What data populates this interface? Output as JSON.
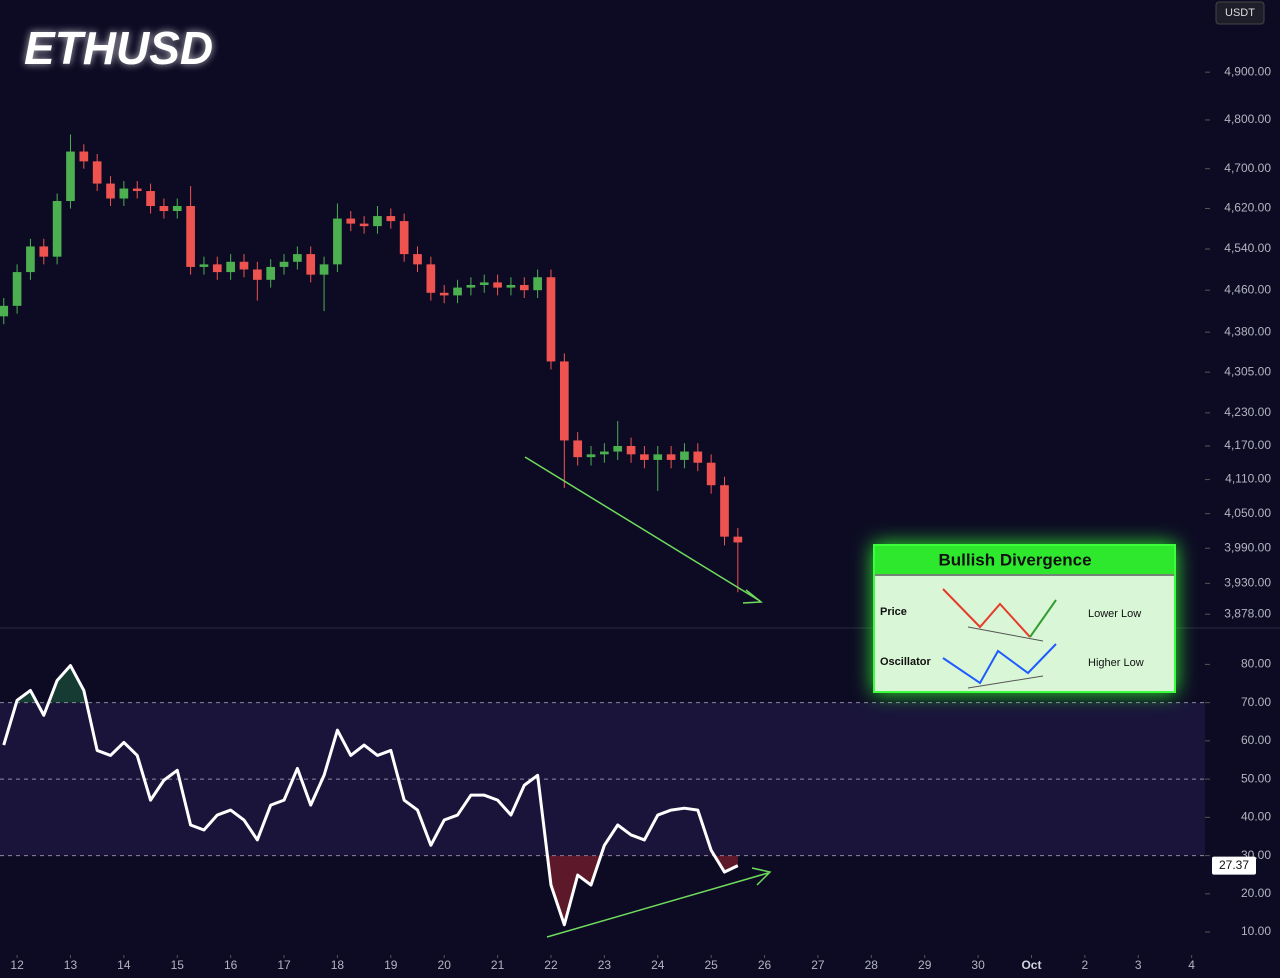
{
  "chart_data": [
    {
      "type": "candlestick",
      "title": "ETHUSD",
      "unit": "USDT",
      "log_scale": true,
      "up_color": "#4caf50",
      "down_color": "#ef5350",
      "x": [
        11.75,
        12,
        12.25,
        12.5,
        12.75,
        13,
        13.25,
        13.5,
        13.75,
        14,
        14.25,
        14.5,
        14.75,
        15,
        15.25,
        15.5,
        15.75,
        16,
        16.25,
        16.5,
        16.75,
        17,
        17.25,
        17.5,
        17.75,
        18,
        18.25,
        18.5,
        18.75,
        19,
        19.25,
        19.5,
        19.75,
        20,
        20.25,
        20.5,
        20.75,
        21,
        21.25,
        21.5,
        21.75,
        22,
        22.25,
        22.5,
        22.75,
        23,
        23.25,
        23.5,
        23.75,
        24,
        24.25,
        24.5,
        24.75,
        25,
        25.25,
        25.5
      ],
      "open": [
        4410,
        4430,
        4495,
        4545,
        4525,
        4635,
        4735,
        4715,
        4670,
        4640,
        4660,
        4655,
        4625,
        4615,
        4625,
        4505,
        4510,
        4495,
        4515,
        4500,
        4480,
        4505,
        4515,
        4530,
        4490,
        4510,
        4600,
        4590,
        4585,
        4605,
        4595,
        4530,
        4510,
        4455,
        4450,
        4465,
        4470,
        4475,
        4465,
        4470,
        4460,
        4485,
        4325,
        4180,
        4150,
        4155,
        4160,
        4170,
        4155,
        4145,
        4155,
        4145,
        4160,
        4140,
        4100,
        4010
      ],
      "high": [
        4445,
        4510,
        4560,
        4560,
        4650,
        4770,
        4750,
        4730,
        4685,
        4675,
        4675,
        4670,
        4640,
        4640,
        4665,
        4525,
        4525,
        4530,
        4530,
        4515,
        4520,
        4530,
        4545,
        4545,
        4525,
        4630,
        4615,
        4605,
        4625,
        4620,
        4610,
        4545,
        4525,
        4470,
        4480,
        4485,
        4490,
        4490,
        4485,
        4485,
        4500,
        4500,
        4340,
        4195,
        4170,
        4175,
        4215,
        4185,
        4170,
        4170,
        4170,
        4175,
        4175,
        4155,
        4115,
        4025
      ],
      "low": [
        4395,
        4415,
        4480,
        4510,
        4510,
        4620,
        4700,
        4655,
        4625,
        4625,
        4640,
        4610,
        4600,
        4600,
        4490,
        4490,
        4480,
        4480,
        4485,
        4440,
        4465,
        4490,
        4500,
        4475,
        4420,
        4495,
        4575,
        4570,
        4570,
        4580,
        4515,
        4495,
        4440,
        4435,
        4435,
        4450,
        4455,
        4450,
        4450,
        4445,
        4445,
        4310,
        4095,
        4135,
        4135,
        4140,
        4145,
        4140,
        4130,
        4090,
        4130,
        4130,
        4125,
        4085,
        3995,
        3915
      ],
      "close": [
        4430,
        4495,
        4545,
        4525,
        4635,
        4735,
        4715,
        4670,
        4640,
        4660,
        4655,
        4625,
        4615,
        4625,
        4505,
        4510,
        4495,
        4515,
        4500,
        4480,
        4505,
        4515,
        4530,
        4490,
        4510,
        4600,
        4590,
        4585,
        4605,
        4595,
        4530,
        4510,
        4455,
        4450,
        4465,
        4470,
        4475,
        4465,
        4470,
        4460,
        4485,
        4325,
        4180,
        4150,
        4155,
        4160,
        4170,
        4155,
        4145,
        4155,
        4145,
        4160,
        4140,
        4100,
        4010,
        4000
      ],
      "xlim": [
        11.68,
        34.25
      ],
      "xticks": [
        12,
        13,
        14,
        15,
        16,
        17,
        18,
        19,
        20,
        21,
        22,
        23,
        24,
        25,
        26,
        27,
        28,
        29,
        30,
        {
          "value": 31,
          "label": "Oct"
        },
        {
          "value": 32,
          "label": "2"
        },
        {
          "value": 33,
          "label": "3"
        },
        {
          "value": 34,
          "label": "4"
        }
      ],
      "ylim": [
        3855,
        5055
      ],
      "yticks": [
        {
          "value": 4900,
          "label": "4,900.00"
        },
        {
          "value": 4800,
          "label": "4,800.00"
        },
        {
          "value": 4700,
          "label": "4,700.00"
        },
        {
          "value": 4620,
          "label": "4,620.00"
        },
        {
          "value": 4540,
          "label": "4,540.00"
        },
        {
          "value": 4460,
          "label": "4,460.00"
        },
        {
          "value": 4380,
          "label": "4,380.00"
        },
        {
          "value": 4305,
          "label": "4,305.00"
        },
        {
          "value": 4230,
          "label": "4,230.00"
        },
        {
          "value": 4170,
          "label": "4,170.00"
        },
        {
          "value": 4110,
          "label": "4,110.00"
        },
        {
          "value": 4050,
          "label": "4,050.00"
        },
        {
          "value": 3990,
          "label": "3,990.00"
        },
        {
          "value": 3930,
          "label": "3,930.00"
        },
        {
          "value": 3878,
          "label": "3,878.00"
        }
      ]
    },
    {
      "type": "line",
      "color": "#ffffff",
      "x": [
        11.75,
        12,
        12.25,
        12.5,
        12.75,
        13,
        13.25,
        13.5,
        13.75,
        14,
        14.25,
        14.5,
        14.75,
        15,
        15.25,
        15.5,
        15.75,
        16,
        16.25,
        16.5,
        16.75,
        17,
        17.25,
        17.5,
        17.75,
        18,
        18.25,
        18.5,
        18.75,
        19,
        19.25,
        19.5,
        19.75,
        20,
        20.25,
        20.5,
        20.75,
        21,
        21.25,
        21.5,
        21.75,
        22,
        22.25,
        22.5,
        22.75,
        23,
        23.25,
        23.5,
        23.75,
        24,
        24.25,
        24.5,
        24.75,
        25,
        25.25,
        25.5
      ],
      "values": [
        58.9,
        70.6,
        73.2,
        66.7,
        75.8,
        79.7,
        73.2,
        57.5,
        56.2,
        59.6,
        56.2,
        44.5,
        49.7,
        52.3,
        38,
        36.7,
        40.6,
        41.9,
        39.3,
        34.1,
        43.2,
        44.5,
        52.8,
        43.2,
        51,
        62.8,
        56.2,
        58.9,
        56.2,
        57.5,
        44.5,
        41.9,
        32.7,
        39.3,
        40.6,
        45.8,
        45.8,
        44.5,
        40.6,
        48.4,
        51,
        22.3,
        11.9,
        24.9,
        22.3,
        32.7,
        38,
        35.4,
        34.1,
        40.6,
        41.9,
        42.4,
        41.9,
        31.4,
        25.7,
        27.37
      ],
      "xlim": [
        11.68,
        34.25
      ],
      "ylim": [
        4,
        89
      ],
      "levels": [
        70,
        50,
        30
      ],
      "yticks": [
        {
          "value": 80,
          "label": "80.00"
        },
        {
          "value": 70,
          "label": "70.00"
        },
        {
          "value": 60,
          "label": "60.00"
        },
        {
          "value": 50,
          "label": "50.00"
        },
        {
          "value": 40,
          "label": "40.00"
        },
        {
          "value": 30,
          "label": "30.00"
        },
        {
          "value": 20,
          "label": "20.00"
        },
        {
          "value": 10,
          "label": "10.00"
        }
      ]
    }
  ],
  "inset": {
    "title": "Bullish Divergence",
    "rows": [
      {
        "label": "Price",
        "note": "Lower Low"
      },
      {
        "label": "Oscillator",
        "note": "Higher Low"
      }
    ]
  }
}
